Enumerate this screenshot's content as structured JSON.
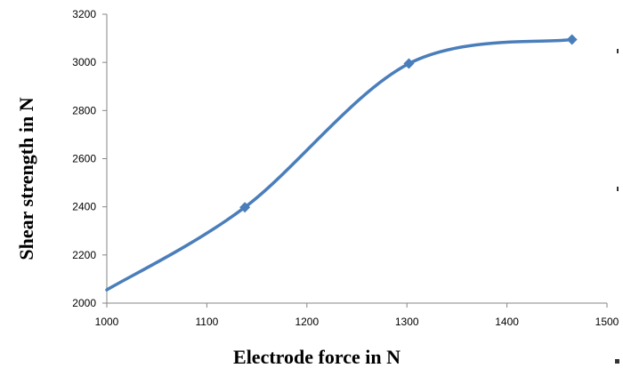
{
  "chart_data": {
    "type": "line",
    "title": "",
    "xlabel": "Electrode force in N",
    "ylabel": "Shear strength in N",
    "xlim": [
      1000,
      1500
    ],
    "ylim": [
      2000,
      3200
    ],
    "xticks": [
      1000,
      1100,
      1200,
      1300,
      1400,
      1500
    ],
    "yticks": [
      2000,
      2200,
      2400,
      2600,
      2800,
      3000,
      3200
    ],
    "xtick_labels": [
      "1000",
      "1100",
      "1200",
      "1300",
      "1400",
      "1500"
    ],
    "ytick_labels": [
      "2000",
      "2200",
      "2400",
      "2600",
      "2800",
      "3000",
      "3200"
    ],
    "grid": false,
    "legend": "none",
    "smooth": true,
    "line_color": "#4a7ebb",
    "series": [
      {
        "x": [
          1000,
          1138,
          1302,
          1465
        ],
        "y": [
          2055,
          2398,
          2995,
          3095
        ]
      }
    ]
  }
}
